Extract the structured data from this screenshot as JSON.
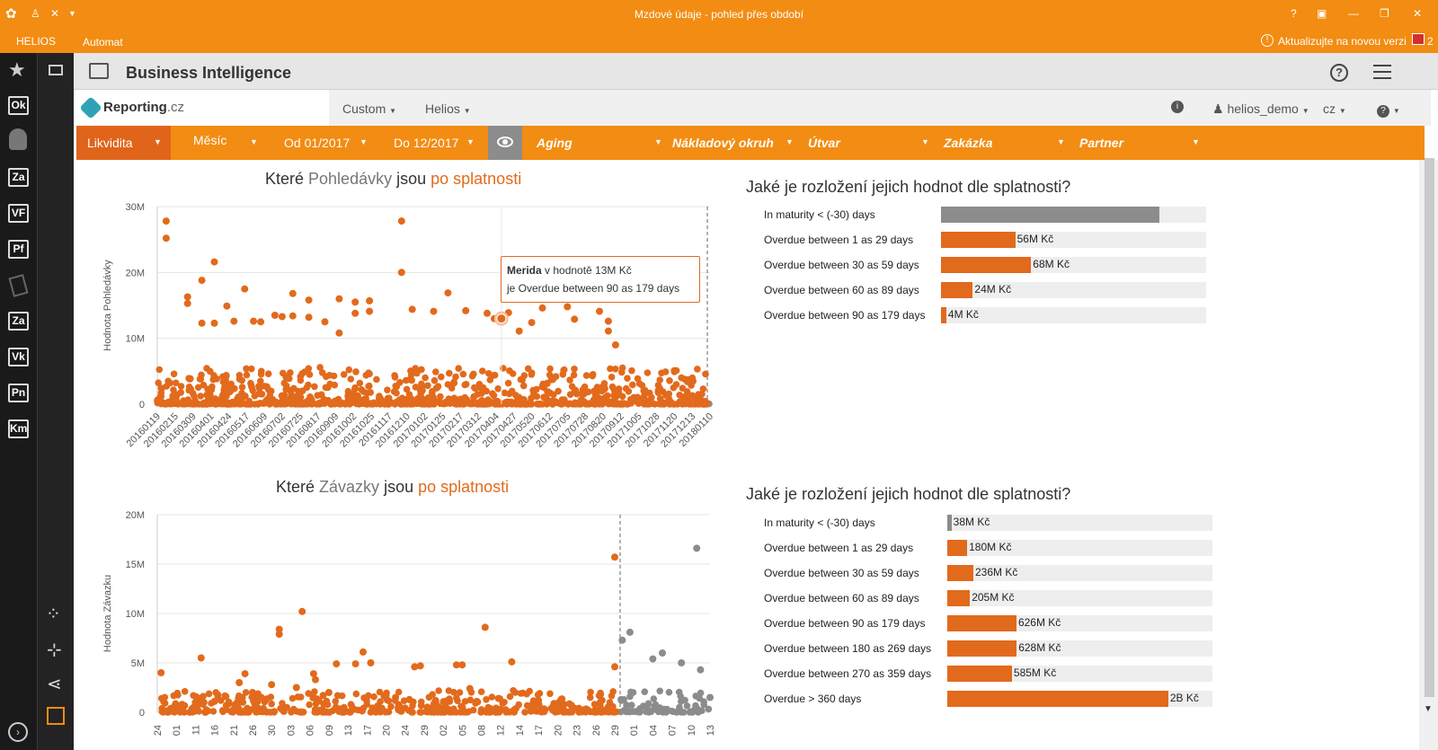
{
  "window": {
    "title": "Mzdové údaje - pohled přes období"
  },
  "menubar": {
    "helios": "HELIOS",
    "automat": "Automat",
    "update": "Aktualizujte na novou verzi",
    "update_count": "2"
  },
  "sidebar": {
    "items": [
      "Ok",
      "Za",
      "VF",
      "Pf",
      "Za",
      "Vk",
      "Pn",
      "Km"
    ]
  },
  "bi": {
    "title": "Business Intelligence"
  },
  "nav": {
    "logo": "Reporting",
    "logo_suffix": ".cz",
    "custom": "Custom",
    "helios": "Helios",
    "user": "helios_demo",
    "lang": "cz"
  },
  "filters": {
    "likvidita": "Likvidita",
    "mesic": "Měsíc",
    "od": "Od 01/2017",
    "do": "Do 12/2017",
    "aging": "Aging",
    "naklad": "Nákladový okruh",
    "utvar": "Útvar",
    "zakazka": "Zakázka",
    "partner": "Partner"
  },
  "top_chart": {
    "title_a": "Které ",
    "title_b": "Pohledávky",
    "title_c": " jsou ",
    "title_d": "po splatnosti",
    "ylabel": "Hodnota Pohledávky",
    "tooltip": {
      "name": "Merida",
      "text1": " v hodnotě 13M Kč",
      "text2": "je Overdue between 90 as 179 days"
    }
  },
  "bottom_chart": {
    "title_a": "Které ",
    "title_b": "Závazky",
    "title_c": " jsou ",
    "title_d": "po splatnosti",
    "ylabel": "Hodnota Závazku"
  },
  "dist_title": "Jaké je rozložení jejich hodnot dle splatnosti?",
  "colors": {
    "orange": "#e26a1c",
    "gray": "#8c8c8c",
    "accent": "#f28c12"
  },
  "chart_data": [
    {
      "type": "scatter",
      "title": "Které Pohledávky jsou po splatnosti",
      "ylabel": "Hodnota Pohledávky",
      "ylim": [
        0,
        30000000
      ],
      "yticks": [
        "0",
        "10M",
        "20M",
        "30M"
      ],
      "xticks": [
        "20160119",
        "20160215",
        "20160309",
        "20160401",
        "20160424",
        "20160517",
        "20160609",
        "20160702",
        "20160725",
        "20160817",
        "20160909",
        "20161002",
        "20161025",
        "20161117",
        "20161210",
        "20170102",
        "20170125",
        "20170217",
        "20170312",
        "20170404",
        "20170427",
        "20170520",
        "20170612",
        "20170705",
        "20170728",
        "20170820",
        "20170912",
        "20171005",
        "20171028",
        "20171120",
        "20171213",
        "20180110"
      ],
      "points": [
        [
          0.5,
          27.8
        ],
        [
          0.5,
          25.2
        ],
        [
          1.7,
          16.3
        ],
        [
          1.7,
          15.3
        ],
        [
          2.5,
          18.8
        ],
        [
          2.5,
          12.3
        ],
        [
          3.2,
          21.6
        ],
        [
          3.2,
          12.3
        ],
        [
          3.9,
          14.9
        ],
        [
          4.3,
          12.6
        ],
        [
          4.9,
          17.5
        ],
        [
          5.4,
          12.6
        ],
        [
          5.8,
          12.5
        ],
        [
          6.6,
          13.5
        ],
        [
          7.0,
          13.3
        ],
        [
          7.6,
          16.8
        ],
        [
          7.6,
          13.4
        ],
        [
          8.5,
          15.8
        ],
        [
          8.5,
          13.2
        ],
        [
          9.4,
          12.5
        ],
        [
          10.2,
          16.0
        ],
        [
          10.2,
          10.8
        ],
        [
          11.1,
          15.5
        ],
        [
          11.1,
          13.8
        ],
        [
          11.9,
          15.7
        ],
        [
          11.9,
          14.1
        ],
        [
          13.7,
          27.8
        ],
        [
          13.7,
          20.0
        ],
        [
          14.3,
          14.4
        ],
        [
          15.5,
          14.1
        ],
        [
          16.3,
          16.9
        ],
        [
          17.3,
          14.2
        ],
        [
          18.5,
          13.8
        ],
        [
          18.9,
          13.0
        ],
        [
          19.7,
          13.9
        ],
        [
          20.3,
          11.1
        ],
        [
          21.0,
          12.4
        ],
        [
          21.6,
          14.6
        ],
        [
          23.0,
          14.8
        ],
        [
          23.4,
          12.9
        ],
        [
          24.8,
          14.1
        ],
        [
          25.3,
          12.6
        ],
        [
          25.3,
          11.1
        ],
        [
          25.6,
          16.3
        ],
        [
          25.7,
          9.0
        ]
      ],
      "tooltip_point": [
        19.3,
        13.0
      ],
      "series": [
        {
          "name": "Pohledávky"
        }
      ]
    },
    {
      "type": "bar",
      "title": "Jaké je rozložení jejich hodnot dle splatnosti?",
      "categories": [
        "In maturity < (-30) days",
        "Overdue between 1 as 29 days",
        "Overdue between 30 as 59 days",
        "Overdue between 60 as 89 days",
        "Overdue between 90 as 179 days"
      ],
      "values": [
        165,
        56,
        68,
        24,
        4
      ],
      "labels": [
        "",
        "56M Kč",
        "68M Kč",
        "24M Kč",
        "4M Kč"
      ],
      "xlim": [
        0,
        200
      ]
    },
    {
      "type": "scatter",
      "title": "Které Závazky jsou po splatnosti",
      "ylabel": "Hodnota Závazku",
      "ylim": [
        0,
        20000000
      ],
      "yticks": [
        "0",
        "5M",
        "10M",
        "15M",
        "20M"
      ],
      "xticks": [
        "24",
        "01",
        "11",
        "16",
        "21",
        "26",
        "30",
        "03",
        "06",
        "09",
        "13",
        "17",
        "20",
        "24",
        "29",
        "02",
        "05",
        "08",
        "12",
        "14",
        "17",
        "20",
        "23",
        "26",
        "29",
        "01",
        "04",
        "07",
        "10",
        "13"
      ],
      "points": [
        [
          0.2,
          4.0
        ],
        [
          1.3,
          0.8
        ],
        [
          2.0,
          1.0
        ],
        [
          2.3,
          5.5
        ],
        [
          3.0,
          1.1
        ],
        [
          3.6,
          1.6
        ],
        [
          4.3,
          3.0
        ],
        [
          4.6,
          3.9
        ],
        [
          5.0,
          2.0
        ],
        [
          6.0,
          2.8
        ],
        [
          6.4,
          8.4
        ],
        [
          6.4,
          7.9
        ],
        [
          7.3,
          2.5
        ],
        [
          7.6,
          10.2
        ],
        [
          8.2,
          3.9
        ],
        [
          8.3,
          3.3
        ],
        [
          8.7,
          1.7
        ],
        [
          9.0,
          2.0
        ],
        [
          9.4,
          4.9
        ],
        [
          10.4,
          4.9
        ],
        [
          10.8,
          6.1
        ],
        [
          11.2,
          5.0
        ],
        [
          12.0,
          1.7
        ],
        [
          12.5,
          1.5
        ],
        [
          13.5,
          4.6
        ],
        [
          13.8,
          4.7
        ],
        [
          14.6,
          1.2
        ],
        [
          15.7,
          4.8
        ],
        [
          16.0,
          4.8
        ],
        [
          16.4,
          2.4
        ],
        [
          17.2,
          8.6
        ],
        [
          17.9,
          1.4
        ],
        [
          18.6,
          5.1
        ],
        [
          20.0,
          1.2
        ],
        [
          24.0,
          15.7
        ],
        [
          24.0,
          4.6
        ],
        [
          24.4,
          7.3
        ],
        [
          24.8,
          8.1
        ],
        [
          26.0,
          5.4
        ],
        [
          26.5,
          6.0
        ],
        [
          27.5,
          5.0
        ],
        [
          28.3,
          16.6
        ],
        [
          28.5,
          4.3
        ],
        [
          29.0,
          1.5
        ]
      ],
      "series": [
        {
          "name": "Závazky"
        }
      ]
    },
    {
      "type": "bar",
      "title": "Jaké je rozložení jejich hodnot dle splatnosti?",
      "categories": [
        "In maturity < (-30) days",
        "Overdue between 1 as 29 days",
        "Overdue between 30 as 59 days",
        "Overdue between 60 as 89 days",
        "Overdue between 90 as 179 days",
        "Overdue between 180 as 269 days",
        "Overdue between 270 as 359 days",
        "Overdue > 360 days"
      ],
      "values": [
        38,
        180,
        236,
        205,
        626,
        628,
        585,
        2000
      ],
      "labels": [
        "38M Kč",
        "180M Kč",
        "236M Kč",
        "205M Kč",
        "626M Kč",
        "628M Kč",
        "585M Kč",
        "2B Kč"
      ],
      "xlim": [
        0,
        2400
      ]
    }
  ]
}
